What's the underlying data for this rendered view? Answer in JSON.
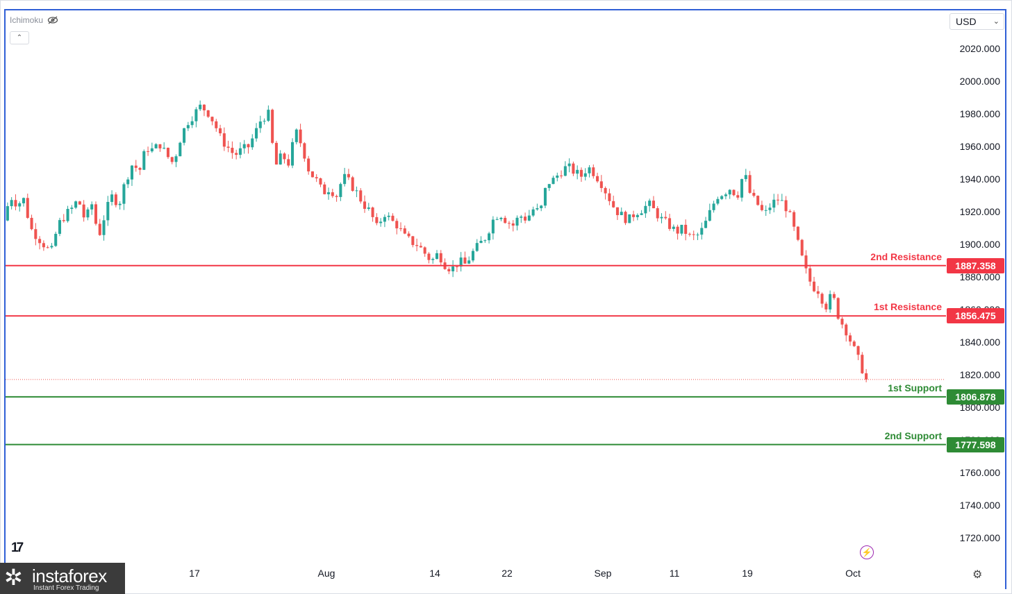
{
  "indicator": {
    "name": "Ichimoku",
    "icon": "eye-crossed-icon"
  },
  "collapse": {
    "label": "⌃"
  },
  "currency": {
    "selected": "USD"
  },
  "colors": {
    "resistance": "#f23645",
    "support": "#2e8b35",
    "bull": "#26a69a",
    "bear": "#ef5350",
    "border": "#2f5fd6"
  },
  "brand": {
    "name": "instaforex",
    "tagline": "Instant Forex Trading"
  },
  "chart_data": {
    "type": "candlestick",
    "title": "",
    "ylim": [
      1705,
      2040
    ],
    "yticks": [
      "2020.000",
      "2000.000",
      "1980.000",
      "1960.000",
      "1940.000",
      "1920.000",
      "1900.000",
      "1880.000",
      "1860.000",
      "1840.000",
      "1820.000",
      "1800.000",
      "1780.000",
      "1760.000",
      "1740.000",
      "1720.000"
    ],
    "ytick_values": [
      2020,
      2000,
      1980,
      1960,
      1940,
      1920,
      1900,
      1880,
      1860,
      1840,
      1820,
      1800,
      1780,
      1760,
      1740,
      1720
    ],
    "xticks": [
      "17",
      "Aug",
      "14",
      "22",
      "Sep",
      "11",
      "19",
      "Oct"
    ],
    "levels": [
      {
        "name": "2nd Resistance",
        "value": 1887.358,
        "label": "1887.358",
        "kind": "resistance"
      },
      {
        "name": "1st Resistance",
        "value": 1856.475,
        "label": "1856.475",
        "kind": "resistance"
      },
      {
        "name": "1st Support",
        "value": 1806.878,
        "label": "1806.878",
        "kind": "support"
      },
      {
        "name": "2nd Support",
        "value": 1777.598,
        "label": "1777.598",
        "kind": "support"
      }
    ],
    "last_price": 1817.5,
    "close_path": [
      1915,
      1930,
      1925,
      1928,
      1910,
      1905,
      1900,
      1895,
      1912,
      1918,
      1922,
      1928,
      1915,
      1925,
      1905,
      1920,
      1930,
      1925,
      1940,
      1950,
      1945,
      1960,
      1958,
      1962,
      1955,
      1950,
      1965,
      1975,
      1980,
      1985,
      1982,
      1975,
      1965,
      1960,
      1955,
      1958,
      1960,
      1968,
      1978,
      1980,
      1948,
      1955,
      1950,
      1970,
      1960,
      1945,
      1940,
      1932,
      1935,
      1930,
      1942,
      1938,
      1932,
      1925,
      1920,
      1910,
      1920,
      1915,
      1912,
      1905,
      1902,
      1900,
      1895,
      1890,
      1895,
      1888,
      1885,
      1890,
      1888,
      1895,
      1900,
      1905,
      1915,
      1920,
      1915,
      1912,
      1918,
      1916,
      1922,
      1920,
      1938,
      1940,
      1945,
      1948,
      1945,
      1942,
      1948,
      1944,
      1938,
      1930,
      1922,
      1918,
      1915,
      1920,
      1922,
      1925,
      1920,
      1915,
      1912,
      1908,
      1910,
      1905,
      1905,
      1910,
      1920,
      1930,
      1932,
      1935,
      1930,
      1945,
      1930,
      1925,
      1918,
      1925,
      1928,
      1925,
      1915,
      1900,
      1885,
      1875,
      1872,
      1862,
      1870,
      1855,
      1848,
      1838,
      1828,
      1818
    ]
  }
}
